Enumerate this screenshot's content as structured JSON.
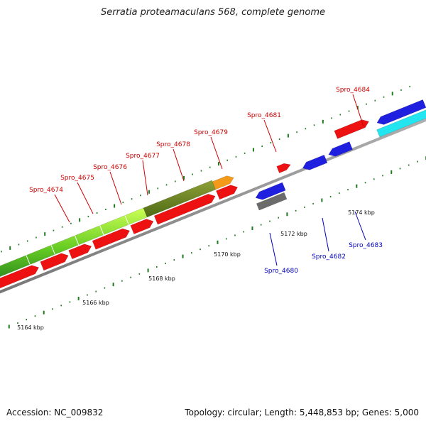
{
  "title": "Serratia proteamaculans 568, complete genome",
  "footer": {
    "accession": "Accession: NC_009832",
    "info": "Topology: circular; Length: 5,448,853 bp; Genes: 5,000"
  },
  "colors": {
    "forward_cds": "#ee1111",
    "reverse_cds": "#1f1fe0",
    "label_forward": "#cc0000",
    "label_reverse": "#0000bb",
    "backbone": "#8c8c8c",
    "ticks": "#1e7a1e"
  },
  "ticks": [
    {
      "label": "5164 kbp"
    },
    {
      "label": "5166 kbp"
    },
    {
      "label": "5168 kbp"
    },
    {
      "label": "5170 kbp"
    },
    {
      "label": "5172 kbp"
    },
    {
      "label": "5174 kbp"
    }
  ],
  "forward_labels": [
    "Spro_4674",
    "Spro_4675",
    "Spro_4676",
    "Spro_4677",
    "Spro_4678",
    "Spro_4679",
    "Spro_4681",
    "Spro_4684"
  ],
  "reverse_labels": [
    "Spro_4680",
    "Spro_4682",
    "Spro_4683"
  ]
}
